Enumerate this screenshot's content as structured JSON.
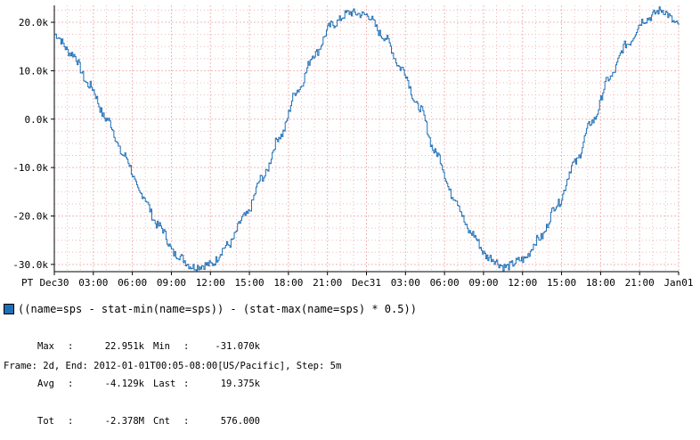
{
  "chart_data": {
    "type": "line",
    "series": [
      {
        "name": "((name=sps - stat-min(name=sps)) - (stat-max(name=sps) * 0.5))",
        "color": "#1f6fb5",
        "stats": {
          "max": "22.951k",
          "min": "-31.070k",
          "avg": "-4.129k",
          "last": "19.375k",
          "tot": "-2.378M",
          "cnt": "576.000"
        },
        "samples": [
          17500,
          13500,
          7000,
          0,
          -7500,
          -15500,
          -22000,
          -28000,
          -30500,
          -30000,
          -26000,
          -20000,
          -12000,
          -3500,
          6000,
          13500,
          19500,
          22000,
          21500,
          17000,
          10500,
          2500,
          -7000,
          -16000,
          -23500,
          -28500,
          -30500,
          -29000,
          -24500,
          -17500,
          -9000,
          -500,
          8500,
          15500,
          20500,
          22500,
          19375
        ]
      }
    ],
    "x_start": "Dec30 00:00",
    "x_end": "Jan01 00:00",
    "ylim": [
      -31500,
      23500
    ],
    "yticks": [
      20000,
      10000,
      0,
      -10000,
      -20000,
      -30000
    ],
    "ytick_labels": [
      "20.0k",
      "10.0k",
      "0.0k",
      "-10.0k",
      "-20.0k",
      "-30.0k"
    ],
    "xtick_labels": [
      "PT",
      "Dec30",
      "03:00",
      "06:00",
      "09:00",
      "12:00",
      "15:00",
      "18:00",
      "21:00",
      "Dec31",
      "03:00",
      "06:00",
      "09:00",
      "12:00",
      "15:00",
      "18:00",
      "21:00",
      "Jan01"
    ],
    "grid": true,
    "grid_color": "#f2b8b8"
  },
  "legend": {
    "label": "((name=sps - stat-min(name=sps)) - (stat-max(name=sps) * 0.5))",
    "stats_rows": [
      {
        "k1": "Max",
        "v1": "22.951k",
        "k2": "Min",
        "v2": "-31.070k"
      },
      {
        "k1": "Avg",
        "v1": "-4.129k",
        "k2": "Last",
        "v2": "19.375k"
      },
      {
        "k1": "Tot",
        "v1": "-2.378M",
        "k2": "Cnt",
        "v2": "576.000"
      }
    ]
  },
  "footer": "Frame: 2d, End: 2012-01-01T00:05-08:00[US/Pacific], Step: 5m"
}
